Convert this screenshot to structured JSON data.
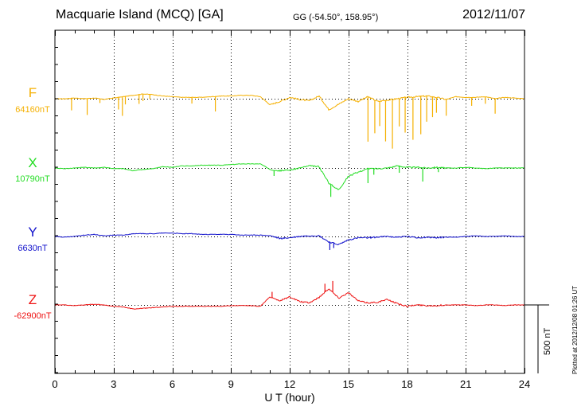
{
  "header": {
    "title": "Macquarie Island (MCQ)  [GA]",
    "coordinates": "GG (-54.50°, 158.95°)",
    "date": "2012/11/07"
  },
  "plotted_note": "Plotted at 2012/12/08 01:26 UT",
  "chart_data": {
    "type": "line",
    "xlabel": "U T (hour)",
    "xlim": [
      0,
      24
    ],
    "xticks": [
      "0",
      "3",
      "6",
      "9",
      "12",
      "15",
      "18",
      "21",
      "24"
    ],
    "scale_bar": {
      "value_nT": 500,
      "label": "500 nT"
    },
    "grid": true,
    "series": [
      {
        "name": "F",
        "baseline": "64160nT",
        "color": "#f5b000",
        "x": [
          0,
          0.5,
          1,
          1.5,
          2,
          2.5,
          3,
          3.5,
          4,
          4.5,
          5,
          5.5,
          6,
          6.5,
          7,
          7.5,
          8,
          8.5,
          9,
          9.5,
          10,
          10.5,
          11,
          11.5,
          12,
          12.5,
          13,
          13.5,
          14,
          14.5,
          15,
          15.5,
          16,
          16.5,
          17,
          17.5,
          18,
          18.5,
          19,
          19.5,
          20,
          20.5,
          21,
          21.5,
          22,
          22.5,
          23,
          23.5,
          24
        ],
        "y": [
          0,
          0,
          5,
          0,
          5,
          -5,
          5,
          15,
          25,
          35,
          30,
          20,
          15,
          10,
          10,
          10,
          15,
          20,
          20,
          25,
          25,
          15,
          -45,
          -20,
          10,
          -5,
          -15,
          20,
          -80,
          -40,
          0,
          -20,
          15,
          -20,
          -10,
          0,
          10,
          15,
          20,
          10,
          -5,
          15,
          10,
          10,
          15,
          0,
          10,
          5,
          0
        ],
        "spikes": [
          {
            "x": 0.85,
            "dy": -90
          },
          {
            "x": 1.65,
            "dy": -120
          },
          {
            "x": 2.3,
            "dy": -30
          },
          {
            "x": 3.25,
            "dy": -90
          },
          {
            "x": 3.45,
            "dy": -140
          },
          {
            "x": 3.6,
            "dy": -60
          },
          {
            "x": 4.3,
            "dy": -70
          },
          {
            "x": 4.5,
            "dy": -50
          },
          {
            "x": 4.85,
            "dy": -35
          },
          {
            "x": 7,
            "dy": -45
          },
          {
            "x": 8.2,
            "dy": -110
          },
          {
            "x": 16.0,
            "dy": -330
          },
          {
            "x": 16.35,
            "dy": -240
          },
          {
            "x": 16.6,
            "dy": -180
          },
          {
            "x": 16.9,
            "dy": -300
          },
          {
            "x": 17.25,
            "dy": -360
          },
          {
            "x": 17.6,
            "dy": -200
          },
          {
            "x": 17.9,
            "dy": -260
          },
          {
            "x": 18.3,
            "dy": -310
          },
          {
            "x": 18.7,
            "dy": -280
          },
          {
            "x": 19.0,
            "dy": -190
          },
          {
            "x": 19.3,
            "dy": -150
          },
          {
            "x": 19.5,
            "dy": -110
          },
          {
            "x": 20.0,
            "dy": -120
          },
          {
            "x": 21.3,
            "dy": -60
          },
          {
            "x": 22.0,
            "dy": -50
          },
          {
            "x": 22.5,
            "dy": -110
          }
        ]
      },
      {
        "name": "X",
        "baseline": "10790nT",
        "color": "#22dd22",
        "x": [
          0,
          0.5,
          1,
          1.5,
          2,
          2.5,
          3,
          3.5,
          4,
          4.5,
          5,
          5.5,
          6,
          6.5,
          7,
          7.5,
          8,
          8.5,
          9,
          9.5,
          10,
          10.5,
          11,
          11.5,
          12,
          12.5,
          13,
          13.5,
          14,
          14.5,
          15,
          15.5,
          16,
          16.5,
          17,
          17.5,
          18,
          18.5,
          19,
          19.5,
          20,
          20.5,
          21,
          21.5,
          22,
          22.5,
          23,
          23.5,
          24
        ],
        "y": [
          0,
          -5,
          0,
          5,
          0,
          5,
          -5,
          -5,
          -20,
          -10,
          -5,
          10,
          5,
          15,
          15,
          20,
          20,
          20,
          25,
          30,
          30,
          30,
          -10,
          -20,
          -15,
          0,
          15,
          10,
          -110,
          -160,
          -60,
          -30,
          -5,
          -5,
          0,
          15,
          5,
          5,
          0,
          5,
          0,
          0,
          5,
          0,
          -5,
          0,
          0,
          0,
          0
        ],
        "spikes": [
          {
            "x": 11.2,
            "dy": -40
          },
          {
            "x": 14.1,
            "dy": -90
          },
          {
            "x": 16.0,
            "dy": -110
          },
          {
            "x": 16.3,
            "dy": -40
          },
          {
            "x": 17.6,
            "dy": -50
          },
          {
            "x": 18.8,
            "dy": -100
          },
          {
            "x": 19.6,
            "dy": -30
          }
        ]
      },
      {
        "name": "Y",
        "baseline": "6630nT",
        "color": "#1111cc",
        "x": [
          0,
          0.5,
          1,
          1.5,
          2,
          2.5,
          3,
          3.5,
          4,
          4.5,
          5,
          5.5,
          6,
          6.5,
          7,
          7.5,
          8,
          8.5,
          9,
          9.5,
          10,
          10.5,
          11,
          11.5,
          12,
          12.5,
          13,
          13.5,
          14,
          14.5,
          15,
          15.5,
          16,
          16.5,
          17,
          17.5,
          18,
          18.5,
          19,
          19.5,
          20,
          20.5,
          21,
          21.5,
          22,
          22.5,
          23,
          23.5,
          24
        ],
        "y": [
          0,
          -5,
          0,
          10,
          15,
          5,
          10,
          10,
          20,
          20,
          20,
          25,
          25,
          20,
          20,
          15,
          15,
          15,
          15,
          10,
          10,
          10,
          5,
          -15,
          -10,
          0,
          5,
          5,
          -40,
          -60,
          -25,
          -10,
          -10,
          -5,
          0,
          -5,
          0,
          -10,
          -5,
          -10,
          -5,
          -5,
          0,
          5,
          0,
          0,
          5,
          0,
          0
        ],
        "spikes": [
          {
            "x": 14.05,
            "dy": -60
          },
          {
            "x": 14.25,
            "dy": -40
          }
        ]
      },
      {
        "name": "Z",
        "baseline": "-62900nT",
        "color": "#ee1111",
        "x": [
          0,
          0.5,
          1,
          1.5,
          2,
          2.5,
          3,
          3.5,
          4,
          4.5,
          5,
          5.5,
          6,
          6.5,
          7,
          7.5,
          8,
          8.5,
          9,
          9.5,
          10,
          10.5,
          11,
          11.5,
          12,
          12.5,
          13,
          13.5,
          14,
          14.5,
          15,
          15.5,
          16,
          16.5,
          17,
          17.5,
          18,
          18.5,
          19,
          19.5,
          20,
          20.5,
          21,
          21.5,
          22,
          22.5,
          23,
          23.5,
          24
        ],
        "y": [
          0,
          0,
          -5,
          0,
          5,
          0,
          -10,
          -15,
          -30,
          -25,
          -20,
          -15,
          -10,
          -10,
          -10,
          -10,
          -10,
          -10,
          -5,
          -5,
          -5,
          -10,
          60,
          30,
          60,
          25,
          15,
          55,
          120,
          50,
          90,
          30,
          15,
          20,
          40,
          10,
          -10,
          0,
          -5,
          -5,
          0,
          0,
          0,
          -5,
          0,
          0,
          -5,
          0,
          0
        ],
        "spikes": [
          {
            "x": 11.1,
            "dy": 40
          },
          {
            "x": 13.8,
            "dy": 60
          },
          {
            "x": 14.2,
            "dy": 80
          }
        ]
      }
    ]
  }
}
